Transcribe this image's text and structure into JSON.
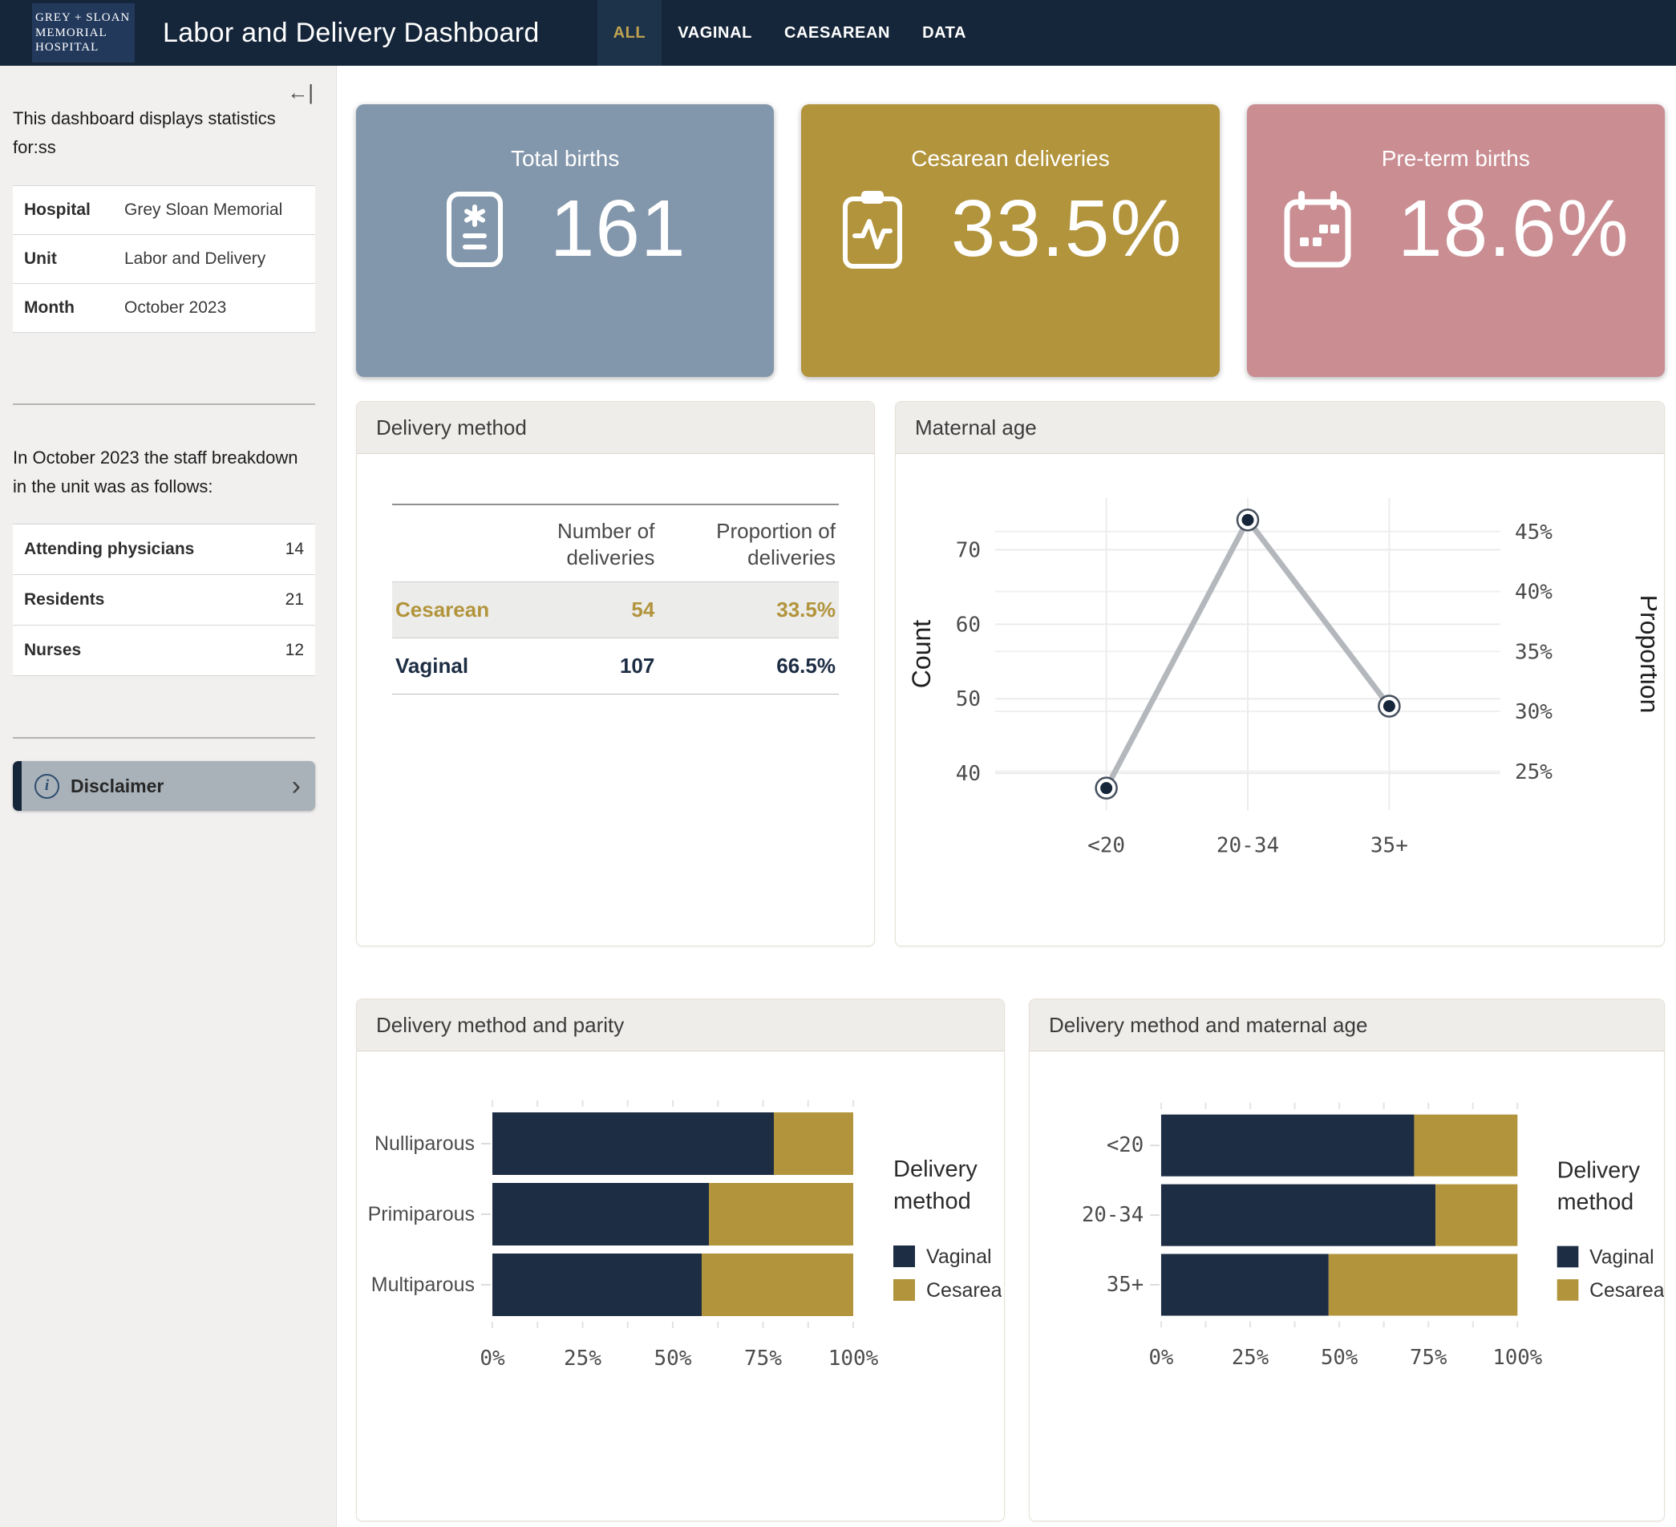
{
  "header": {
    "logo_lines": [
      "GREY + SLOAN",
      "MEMORIAL",
      "HOSPITAL"
    ],
    "title": "Labor and Delivery Dashboard",
    "nav": [
      {
        "label": "ALL",
        "active": true
      },
      {
        "label": "VAGINAL",
        "active": false
      },
      {
        "label": "CAESAREAN",
        "active": false
      },
      {
        "label": "DATA",
        "active": false
      }
    ]
  },
  "sidebar": {
    "collapse_glyph": "←|",
    "intro": "This dashboard displays statistics for:ss",
    "info_table": [
      {
        "label": "Hospital",
        "value": "Grey Sloan Memorial"
      },
      {
        "label": "Unit",
        "value": "Labor and Delivery"
      },
      {
        "label": "Month",
        "value": "October 2023"
      }
    ],
    "staff_intro": "In October 2023 the staff breakdown in the unit was as follows:",
    "staff_table": [
      {
        "label": "Attending physicians",
        "value": "14"
      },
      {
        "label": "Residents",
        "value": "21"
      },
      {
        "label": "Nurses",
        "value": "12"
      }
    ],
    "disclaimer_label": "Disclaimer",
    "disclaimer_chevron": "›"
  },
  "kpis": [
    {
      "label": "Total births",
      "value": "161",
      "color": "#8397ac",
      "icon": "birth-record-icon"
    },
    {
      "label": "Cesarean deliveries",
      "value": "33.5%",
      "color": "#b2943c",
      "icon": "clipboard-pulse-icon"
    },
    {
      "label": "Pre-term births",
      "value": "18.6%",
      "color": "#c98d92",
      "icon": "calendar-icon"
    }
  ],
  "panels": {
    "delivery_method": {
      "title": "Delivery method",
      "columns": [
        "Number of deliveries",
        "Proportion of deliveries"
      ],
      "rows": [
        {
          "label": "Cesarean",
          "count": "54",
          "proportion": "33.5%"
        },
        {
          "label": "Vaginal",
          "count": "107",
          "proportion": "66.5%"
        }
      ]
    },
    "maternal_age": {
      "title": "Maternal age"
    },
    "parity": {
      "title": "Delivery method and parity"
    },
    "age_bars": {
      "title": "Delivery method and maternal age"
    }
  },
  "chart_data": [
    {
      "id": "maternal-age-line",
      "type": "line",
      "title": "Maternal age",
      "categories": [
        "<20",
        "20-34",
        "35+"
      ],
      "series": [
        {
          "name": "Count",
          "values": [
            38,
            74,
            49
          ]
        }
      ],
      "proportions_pct": [
        23.6,
        46.0,
        30.4
      ],
      "total_births": 161,
      "ylabel_left": "Count",
      "ylabel_right": "Proportion",
      "left_ticks": [
        40,
        50,
        60,
        70
      ],
      "right_ticks_pct": [
        25,
        30,
        35,
        40,
        45
      ],
      "ylim": [
        35,
        77
      ],
      "grid": true,
      "legend_position": "none",
      "line_color": "#b4b8bd",
      "marker_color": "#16263a"
    },
    {
      "id": "parity-bars",
      "type": "bar",
      "title": "Delivery method and parity",
      "orientation": "horizontal-stacked",
      "categories": [
        "Nulliparous",
        "Primiparous",
        "Multiparous"
      ],
      "series": [
        {
          "name": "Vaginal",
          "color": "#1d2d44",
          "values_pct": [
            78,
            60,
            58
          ]
        },
        {
          "name": "Cesarean",
          "color": "#b2943c",
          "values_pct": [
            22,
            40,
            42
          ]
        }
      ],
      "x_ticks_pct": [
        0,
        25,
        50,
        75,
        100
      ],
      "xlim_pct": [
        0,
        100
      ],
      "legend_title": "Delivery method",
      "legend_position": "right"
    },
    {
      "id": "age-bars",
      "type": "bar",
      "title": "Delivery method and maternal age",
      "orientation": "horizontal-stacked",
      "categories": [
        "<20",
        "20-34",
        "35+"
      ],
      "series": [
        {
          "name": "Vaginal",
          "color": "#1d2d44",
          "values_pct": [
            71,
            77,
            47
          ]
        },
        {
          "name": "Cesarean",
          "color": "#b2943c",
          "values_pct": [
            29,
            23,
            53
          ]
        }
      ],
      "x_ticks_pct": [
        0,
        25,
        50,
        75,
        100
      ],
      "xlim_pct": [
        0,
        100
      ],
      "legend_title": "Delivery method",
      "legend_position": "right"
    }
  ]
}
